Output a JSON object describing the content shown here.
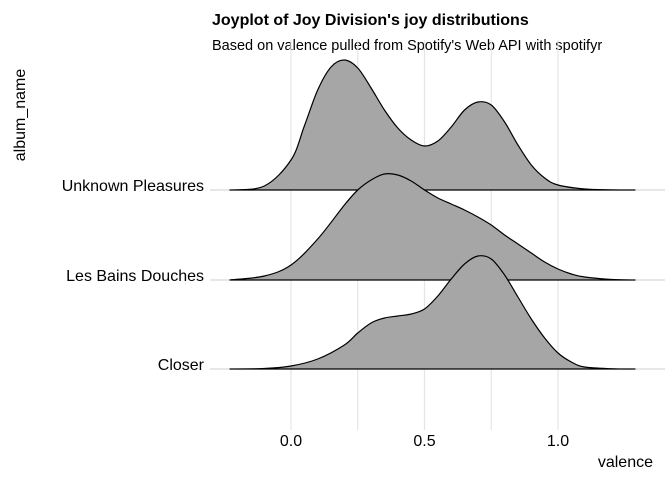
{
  "chart_data": {
    "type": "area",
    "subtype": "ridgeline",
    "title": "Joyplot of Joy Division's joy distributions",
    "subtitle": "Based on valence pulled from Spotify's Web API with spotifyr",
    "xlabel": "valence",
    "ylabel": "album_name",
    "xlim": [
      -0.23,
      1.29
    ],
    "x_ticks": [
      {
        "value": 0.0,
        "label": "0.0"
      },
      {
        "value": 0.5,
        "label": "0.5"
      },
      {
        "value": 1.0,
        "label": "1.0"
      }
    ],
    "grid": true,
    "fill_color": "#a6a6a6",
    "series": [
      {
        "name": "Closer",
        "x": [
          -0.23,
          -0.1,
          0.0,
          0.1,
          0.2,
          0.25,
          0.3,
          0.35,
          0.4,
          0.45,
          0.5,
          0.55,
          0.6,
          0.65,
          0.7,
          0.75,
          0.8,
          0.85,
          0.9,
          0.95,
          1.0,
          1.05,
          1.1,
          1.2,
          1.29
        ],
        "density": [
          0.0,
          0.005,
          0.03,
          0.1,
          0.24,
          0.36,
          0.46,
          0.51,
          0.53,
          0.55,
          0.6,
          0.73,
          0.9,
          1.05,
          1.13,
          1.1,
          0.94,
          0.72,
          0.5,
          0.31,
          0.16,
          0.07,
          0.02,
          0.003,
          0.0
        ]
      },
      {
        "name": "Les Bains Douches",
        "x": [
          -0.23,
          -0.1,
          0.0,
          0.1,
          0.2,
          0.25,
          0.3,
          0.35,
          0.4,
          0.45,
          0.5,
          0.55,
          0.6,
          0.65,
          0.7,
          0.75,
          0.8,
          0.85,
          0.9,
          0.95,
          1.0,
          1.05,
          1.1,
          1.2,
          1.29
        ],
        "density": [
          0.0,
          0.04,
          0.15,
          0.41,
          0.75,
          0.9,
          1.0,
          1.06,
          1.05,
          0.99,
          0.9,
          0.82,
          0.76,
          0.7,
          0.63,
          0.55,
          0.45,
          0.36,
          0.27,
          0.18,
          0.11,
          0.06,
          0.03,
          0.005,
          0.0
        ]
      },
      {
        "name": "Unknown Pleasures",
        "x": [
          -0.23,
          -0.1,
          0.0,
          0.05,
          0.1,
          0.15,
          0.2,
          0.25,
          0.3,
          0.35,
          0.4,
          0.45,
          0.5,
          0.55,
          0.6,
          0.65,
          0.7,
          0.75,
          0.8,
          0.85,
          0.9,
          0.95,
          1.0,
          1.1,
          1.2,
          1.29
        ],
        "density": [
          0.0,
          0.04,
          0.3,
          0.64,
          1.0,
          1.23,
          1.3,
          1.22,
          1.02,
          0.8,
          0.62,
          0.5,
          0.44,
          0.49,
          0.63,
          0.8,
          0.88,
          0.85,
          0.68,
          0.45,
          0.25,
          0.12,
          0.05,
          0.01,
          0.002,
          0.0
        ]
      }
    ]
  }
}
